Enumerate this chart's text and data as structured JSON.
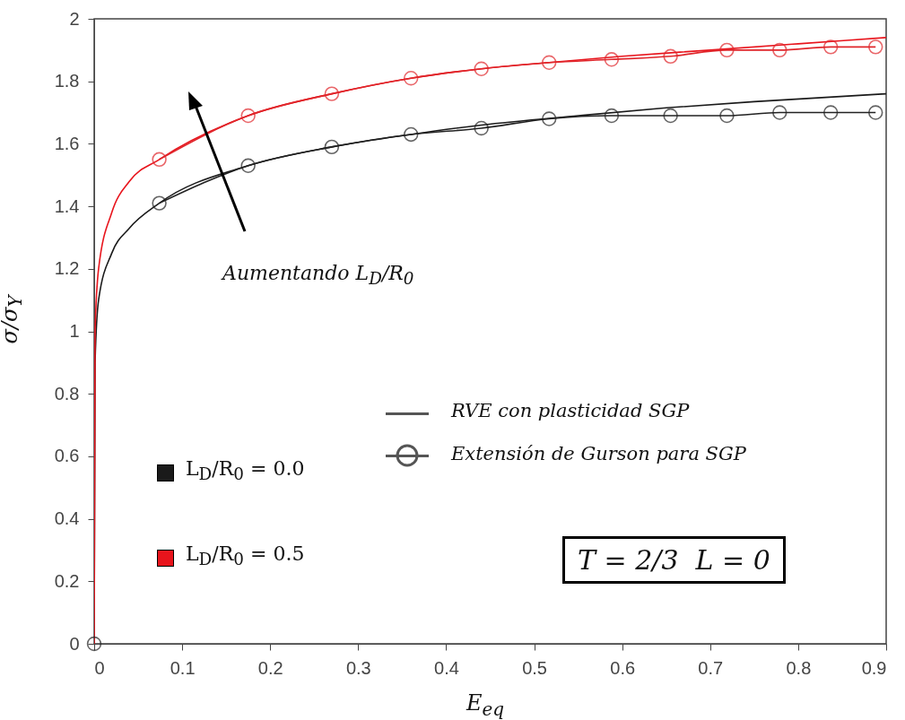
{
  "chart_data": {
    "type": "line",
    "xlabel": "E$_{eq}$",
    "ylabel": "σ/σ$_{Y}$",
    "xlim": [
      0,
      0.9
    ],
    "ylim": [
      0,
      2
    ],
    "xticks": [
      0,
      0.1,
      0.2,
      0.3,
      0.4,
      0.5,
      0.6,
      0.7,
      0.8,
      0.9
    ],
    "yticks": [
      0,
      0.2,
      0.4,
      0.6,
      0.8,
      1,
      1.2,
      1.4,
      1.6,
      1.8,
      2
    ],
    "grid": false,
    "legend": "bottom left",
    "line_style": "solid",
    "series": [
      {
        "name": "L$_{D}$/R$_{0}$ = 0.0",
        "color": "#1a1a1a",
        "marker": "none",
        "x": [
          0,
          0.001,
          0.005,
          0.02,
          0.04,
          0.074,
          0.175,
          0.27,
          0.36,
          0.44,
          0.55,
          0.65,
          0.75,
          0.9
        ],
        "values": [
          0,
          0.9,
          1.1,
          1.25,
          1.33,
          1.41,
          1.53,
          1.59,
          1.63,
          1.66,
          1.69,
          1.715,
          1.735,
          1.76
        ]
      },
      {
        "name": "L$_{D}$/R$_{0}$ = 0.5",
        "color": "#e8141c",
        "marker": "none",
        "x": [
          0,
          0.001,
          0.005,
          0.02,
          0.04,
          0.074,
          0.175,
          0.27,
          0.36,
          0.44,
          0.517,
          0.6,
          0.7,
          0.8,
          0.9
        ],
        "values": [
          0,
          1.0,
          1.2,
          1.38,
          1.48,
          1.55,
          1.69,
          1.76,
          1.81,
          1.84,
          1.86,
          1.88,
          1.9,
          1.92,
          1.94
        ]
      },
      {
        "type": "scatter",
        "color": "#222222",
        "marker": "circle",
        "x": [
          0
        ],
        "values": [
          0
        ]
      },
      {
        "color": "#222222",
        "marker": "circle",
        "x": [
          0.074,
          0.175,
          0.27,
          0.36,
          0.44,
          0.517,
          0.588,
          0.655,
          0.719,
          0.779,
          0.837,
          0.888
        ],
        "values": [
          1.41,
          1.53,
          1.59,
          1.63,
          1.65,
          1.68,
          1.69,
          1.69,
          1.69,
          1.7,
          1.7,
          1.7
        ]
      },
      {
        "color": "#e0262b",
        "marker": "circle",
        "x": [
          0.074,
          0.175,
          0.27,
          0.36,
          0.44,
          0.517,
          0.588,
          0.655,
          0.719,
          0.779,
          0.837,
          0.888
        ],
        "values": [
          1.55,
          1.69,
          1.76,
          1.81,
          1.84,
          1.86,
          1.87,
          1.88,
          1.9,
          1.9,
          1.91,
          1.91
        ]
      }
    ],
    "annotations": [
      "Aumentando L$_{D}$/R$_{0}$",
      "RVE con plasticidad SGP",
      "Extensión de Gurson para SGP",
      "T = 2/3  L = 0"
    ]
  }
}
